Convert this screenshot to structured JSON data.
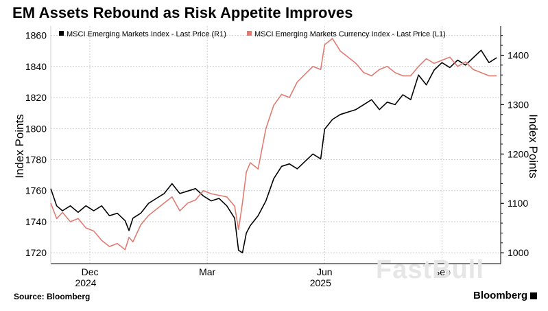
{
  "title": "EM Assets Rebound as Risk Appetite Improves",
  "source": "Source: Bloomberg",
  "brand": "Bloomberg",
  "watermark": "FastBull",
  "chart_data": {
    "type": "line",
    "ylabel_left": "Index Points",
    "ylabel_right": "Index Points",
    "yticks_left": [
      "1720",
      "1740",
      "1760",
      "1780",
      "1800",
      "1820",
      "1840",
      "1860"
    ],
    "yticks_right": [
      "1000",
      "1100",
      "1200",
      "1300",
      "1400"
    ],
    "xticks": [
      {
        "label": "Dec",
        "sublabel": "2024",
        "pos": 1
      },
      {
        "label": "Mar",
        "sublabel": "",
        "pos": 4
      },
      {
        "label": "Jun",
        "sublabel": "2025",
        "pos": 7
      },
      {
        "label": "Sep",
        "sublabel": "",
        "pos": 10
      }
    ],
    "ylim_left": [
      1713,
      1866
    ],
    "ylim_right": [
      978,
      1459
    ],
    "xlim": [
      0,
      11.5
    ],
    "grid": true,
    "legend_position": "top",
    "colors": {
      "em_index": "#000000",
      "em_currency": "#e07b72"
    },
    "series": [
      {
        "name": "MSCI Emerging Markets Index - Last Price (R1)",
        "axis": "right",
        "color": "#000000",
        "x": [
          0,
          0.15,
          0.3,
          0.5,
          0.7,
          0.9,
          1.1,
          1.3,
          1.5,
          1.7,
          1.9,
          2.0,
          2.1,
          2.3,
          2.5,
          2.7,
          2.9,
          3.1,
          3.3,
          3.5,
          3.7,
          3.9,
          4.1,
          4.3,
          4.5,
          4.7,
          4.8,
          4.9,
          5.0,
          5.1,
          5.3,
          5.5,
          5.7,
          5.9,
          6.1,
          6.3,
          6.5,
          6.7,
          6.9,
          7.0,
          7.2,
          7.4,
          7.6,
          7.8,
          8.0,
          8.2,
          8.4,
          8.6,
          8.8,
          9.0,
          9.2,
          9.4,
          9.6,
          9.8,
          10.0,
          10.2,
          10.4,
          10.6,
          10.8,
          11.0,
          11.2,
          11.4
        ],
        "values": [
          1130,
          1095,
          1085,
          1095,
          1082,
          1095,
          1085,
          1095,
          1075,
          1080,
          1065,
          1045,
          1070,
          1080,
          1100,
          1110,
          1120,
          1140,
          1120,
          1125,
          1130,
          1115,
          1105,
          1110,
          1095,
          1070,
          1005,
          1000,
          1040,
          1055,
          1075,
          1105,
          1150,
          1175,
          1180,
          1170,
          1185,
          1200,
          1190,
          1250,
          1270,
          1280,
          1285,
          1290,
          1300,
          1310,
          1290,
          1305,
          1300,
          1320,
          1310,
          1360,
          1340,
          1370,
          1385,
          1375,
          1390,
          1380,
          1395,
          1410,
          1385,
          1395
        ]
      },
      {
        "name": "MSCI Emerging Markets Currency Index - Last Price (L1)",
        "axis": "left",
        "color": "#e07b72",
        "x": [
          0,
          0.15,
          0.3,
          0.5,
          0.7,
          0.9,
          1.1,
          1.3,
          1.5,
          1.7,
          1.9,
          2.0,
          2.1,
          2.3,
          2.5,
          2.7,
          2.9,
          3.1,
          3.3,
          3.5,
          3.7,
          3.9,
          4.1,
          4.3,
          4.5,
          4.7,
          4.8,
          4.9,
          5.0,
          5.1,
          5.3,
          5.5,
          5.7,
          5.9,
          6.1,
          6.3,
          6.5,
          6.7,
          6.9,
          7.0,
          7.2,
          7.4,
          7.6,
          7.8,
          8.0,
          8.2,
          8.4,
          8.6,
          8.8,
          9.0,
          9.2,
          9.4,
          9.6,
          9.8,
          10.0,
          10.2,
          10.4,
          10.6,
          10.8,
          11.0,
          11.2,
          11.4
        ],
        "values": [
          1752,
          1742,
          1746,
          1740,
          1742,
          1736,
          1734,
          1728,
          1724,
          1726,
          1722,
          1730,
          1727,
          1738,
          1744,
          1748,
          1752,
          1756,
          1747,
          1752,
          1754,
          1760,
          1758,
          1757,
          1756,
          1750,
          1735,
          1752,
          1772,
          1778,
          1774,
          1800,
          1815,
          1822,
          1820,
          1830,
          1835,
          1840,
          1838,
          1854,
          1858,
          1850,
          1846,
          1842,
          1836,
          1834,
          1838,
          1840,
          1836,
          1834,
          1834,
          1840,
          1845,
          1842,
          1844,
          1846,
          1840,
          1843,
          1838,
          1836,
          1834,
          1834
        ]
      }
    ]
  }
}
